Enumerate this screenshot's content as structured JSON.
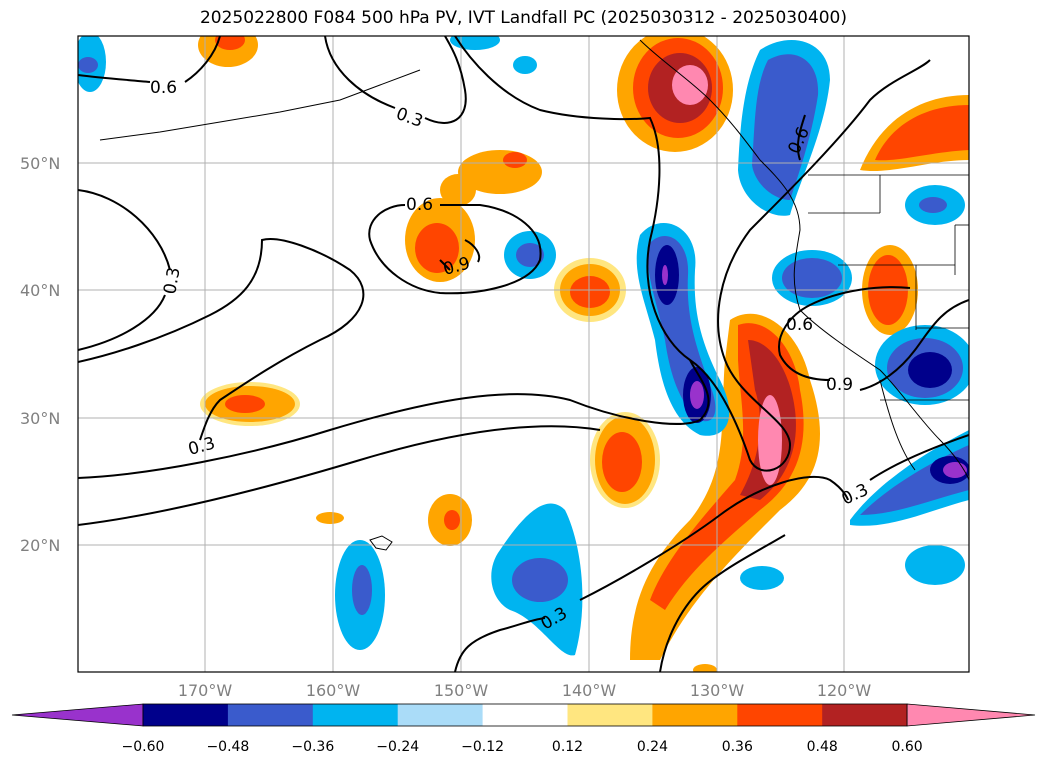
{
  "title": "2025022800 F084 500 hPa PV, IVT Landfall PC (2025030312 - 2025030400)",
  "lat_labels": [
    "50°N",
    "40°N",
    "30°N",
    "20°N"
  ],
  "lon_labels": [
    "170°W",
    "160°W",
    "150°W",
    "140°W",
    "130°W",
    "120°W"
  ],
  "contour_labels": [
    "0.6",
    "0.3",
    "0.6",
    "0.9",
    "0.3",
    "0.3",
    "0.6",
    "0.6",
    "0.9",
    "0.3",
    "0.3"
  ],
  "colorbar": {
    "ticks": [
      "−0.60",
      "−0.48",
      "−0.36",
      "−0.24",
      "−0.12",
      "0.12",
      "0.24",
      "0.36",
      "0.48",
      "0.60"
    ],
    "colors": [
      "#9932cc",
      "#00008b",
      "#3a5bcc",
      "#00b4f0",
      "#aadcf8",
      "#ffffff",
      "#ffe680",
      "#ffa500",
      "#ff4500",
      "#b22222",
      "#ff88b0"
    ]
  }
}
